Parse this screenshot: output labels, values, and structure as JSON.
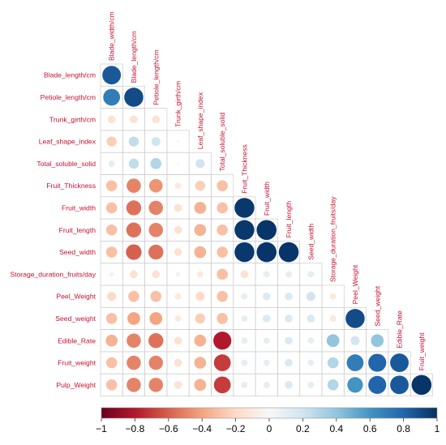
{
  "chart_data": {
    "type": "heatmap",
    "style": "correlation-circles-lower-triangle",
    "title": "",
    "variables": [
      "Blade_width/cm",
      "Blade_length/cm",
      "Petiole_length/cm",
      "Trunk_girth/cm",
      "Leaf_shape_index",
      "Total_soluble_solid",
      "Fruit_Thickness",
      "Fruit_width",
      "Fruit_length",
      "Seed_width",
      "Storage_duration_fruits/day",
      "Peel_Weight",
      "Seed_weight",
      "Edible_Rate",
      "Fruit_weight"
    ],
    "row_labels": [
      "Blade_length/cm",
      "Petiole_length/cm",
      "Trunk_girth/cm",
      "Leaf_shape_index",
      "Total_soluble_solid",
      "Fruit_Thickness",
      "Fruit_width",
      "Fruit_length",
      "Seed_width",
      "Storage_duration_fruits/day",
      "Peel_Weight",
      "Seed_weight",
      "Edible_Rate",
      "Fruit_weight",
      "Pulp_Weight"
    ],
    "column_labels": [
      "Blade_width/cm",
      "Blade_length/cm",
      "Petiole_length/cm",
      "Trunk_girth/cm",
      "Leaf_shape_index",
      "Total_soluble_solid",
      "Fruit_Thickness",
      "Fruit_width",
      "Fruit_length",
      "Seed_width",
      "Storage_duration_fruits/day",
      "Peel_Weight",
      "Seed_weight",
      "Edible_Rate",
      "Fruit_weight"
    ],
    "correlations": [
      [
        0.85
      ],
      [
        0.7,
        0.9
      ],
      [
        -0.15,
        -0.15,
        -0.15
      ],
      [
        -0.25,
        0.25,
        0.2,
        0.02
      ],
      [
        0.1,
        0.25,
        0.3,
        -0.02,
        0.2
      ],
      [
        -0.3,
        -0.5,
        -0.45,
        -0.1,
        -0.25,
        -0.3
      ],
      [
        -0.3,
        -0.55,
        -0.5,
        -0.15,
        -0.35,
        -0.3,
        0.97
      ],
      [
        -0.3,
        -0.55,
        -0.5,
        -0.15,
        -0.35,
        -0.3,
        0.97,
        0.98
      ],
      [
        -0.3,
        -0.6,
        -0.55,
        -0.15,
        -0.35,
        -0.3,
        0.97,
        0.98,
        0.98
      ],
      [
        -0.05,
        -0.15,
        -0.15,
        -0.05,
        -0.1,
        -0.3,
        -0.15,
        0.1,
        0.1,
        0.1
      ],
      [
        -0.2,
        -0.3,
        -0.3,
        -0.1,
        -0.2,
        -0.3,
        0.1,
        0.15,
        0.15,
        0.2,
        -0.1
      ],
      [
        -0.3,
        -0.4,
        -0.4,
        -0.1,
        -0.25,
        -0.3,
        0.1,
        0.15,
        0.15,
        0.15,
        -0.1,
        0.9
      ],
      [
        -0.35,
        -0.5,
        -0.55,
        -0.15,
        -0.35,
        -0.8,
        0.1,
        0.1,
        0.15,
        0.1,
        0.4,
        0.2,
        0.4
      ],
      [
        -0.3,
        -0.5,
        -0.5,
        -0.15,
        -0.35,
        -0.7,
        0.1,
        0.1,
        0.15,
        0.1,
        0.3,
        0.7,
        0.8,
        0.85
      ],
      [
        -0.3,
        -0.5,
        -0.5,
        -0.15,
        -0.35,
        -0.7,
        0.1,
        0.1,
        0.15,
        0.1,
        0.3,
        0.6,
        0.8,
        0.85,
        0.98
      ]
    ],
    "colorbar": {
      "min": -1,
      "max": 1,
      "ticks": [
        "−1",
        "−0.8",
        "−0.6",
        "−0.4",
        "−0.2",
        "0",
        "0.2",
        "0.4",
        "0.6",
        "0.8",
        "1"
      ],
      "tick_values": [
        -1,
        -0.8,
        -0.6,
        -0.4,
        -0.2,
        0,
        0.2,
        0.4,
        0.6,
        0.8,
        1
      ],
      "placement": "bottom"
    },
    "colors": {
      "negative_strong": "#67001f",
      "negative_mid": "#d6604d",
      "neutral": "#f7f7f7",
      "positive_mid": "#4393c3",
      "positive_strong": "#053061",
      "grid": "#cccccc",
      "label": "#c8102e"
    }
  }
}
